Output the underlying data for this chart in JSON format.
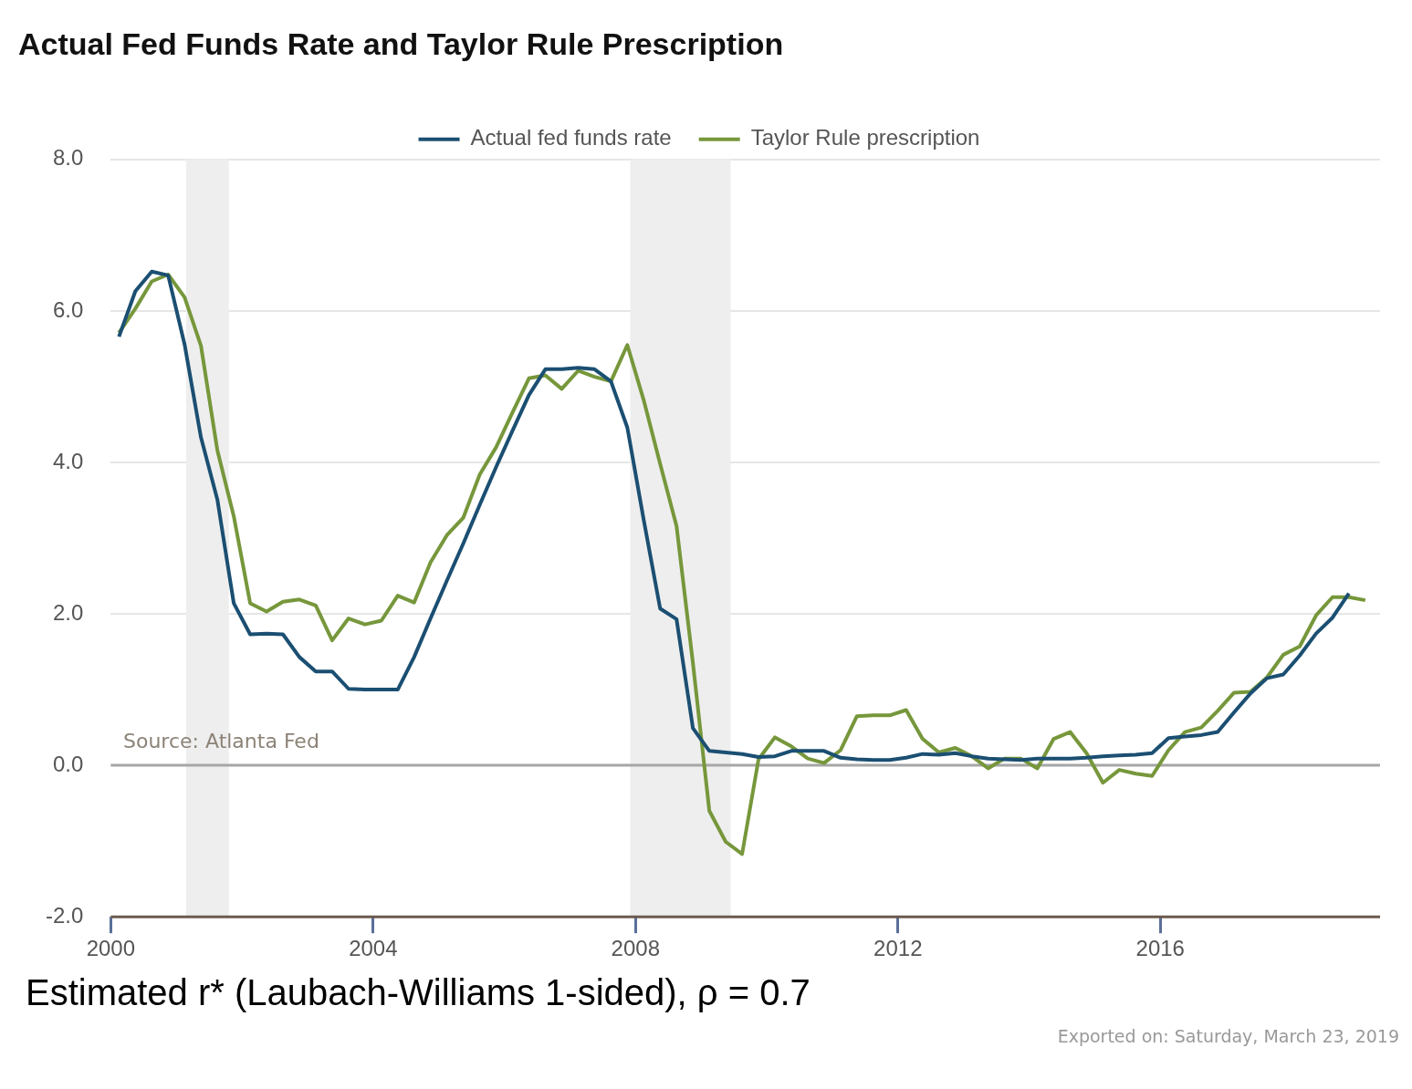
{
  "chart_data": {
    "type": "line",
    "title": "Actual Fed Funds Rate and Taylor Rule Prescription",
    "annotations": [
      "Source: Atlanta Fed",
      "Estimated r* (Laubach-Williams 1-sided), ρ = 0.7",
      "Exported on: Saturday, March 23, 2019"
    ],
    "xlim": [
      2000,
      2019.35
    ],
    "xticks": [
      2000,
      2004,
      2008,
      2012,
      2016
    ],
    "ylim": [
      -2,
      8
    ],
    "yticks": [
      {
        "value": -2,
        "label": "-2.0"
      },
      {
        "value": 0,
        "label": "0.0"
      },
      {
        "value": 2,
        "label": "2.0"
      },
      {
        "value": 4,
        "label": "4.0"
      },
      {
        "value": 6,
        "label": "6.0"
      },
      {
        "value": 8,
        "label": "8.0"
      }
    ],
    "grid": "y",
    "legend": "top",
    "marker": "none",
    "line_style": "solid",
    "bands": [
      {
        "axis": "x",
        "from": 2001.15,
        "to": 2001.8,
        "color": "#eeeeee"
      },
      {
        "axis": "x",
        "from": 2007.92,
        "to": 2009.45,
        "color": "#eeeeee"
      }
    ],
    "ref_lines": [
      {
        "axis": "y",
        "value": 0,
        "color": "#a6a6a6"
      }
    ],
    "series": [
      {
        "name": "Actual fed funds rate",
        "color": "#1b4f72",
        "x": [
          2000.125,
          2000.375,
          2000.625,
          2000.875,
          2001.125,
          2001.375,
          2001.625,
          2001.875,
          2002.125,
          2002.375,
          2002.625,
          2002.875,
          2003.125,
          2003.375,
          2003.625,
          2003.875,
          2004.125,
          2004.375,
          2004.625,
          2004.875,
          2005.125,
          2005.375,
          2005.625,
          2005.875,
          2006.125,
          2006.375,
          2006.625,
          2006.875,
          2007.125,
          2007.375,
          2007.625,
          2007.875,
          2008.125,
          2008.375,
          2008.625,
          2008.875,
          2009.125,
          2009.375,
          2009.625,
          2009.875,
          2010.125,
          2010.375,
          2010.625,
          2010.875,
          2011.125,
          2011.375,
          2011.625,
          2011.875,
          2012.125,
          2012.375,
          2012.625,
          2012.875,
          2013.125,
          2013.375,
          2013.625,
          2013.875,
          2014.125,
          2014.375,
          2014.625,
          2014.875,
          2015.125,
          2015.375,
          2015.625,
          2015.875,
          2016.125,
          2016.375,
          2016.625,
          2016.875,
          2017.125,
          2017.375,
          2017.625,
          2017.875,
          2018.125,
          2018.375,
          2018.625,
          2018.875
        ],
        "values": [
          5.66,
          6.26,
          6.52,
          6.47,
          5.56,
          4.33,
          3.51,
          2.14,
          1.73,
          1.74,
          1.73,
          1.43,
          1.24,
          1.24,
          1.01,
          1.0,
          1.0,
          1.0,
          1.43,
          1.94,
          2.44,
          2.93,
          3.44,
          3.94,
          4.42,
          4.89,
          5.23,
          5.23,
          5.25,
          5.23,
          5.07,
          4.46,
          3.24,
          2.07,
          1.93,
          0.49,
          0.19,
          0.17,
          0.15,
          0.11,
          0.12,
          0.19,
          0.19,
          0.19,
          0.1,
          0.08,
          0.07,
          0.07,
          0.1,
          0.15,
          0.14,
          0.16,
          0.12,
          0.09,
          0.08,
          0.07,
          0.09,
          0.09,
          0.09,
          0.1,
          0.12,
          0.13,
          0.14,
          0.16,
          0.36,
          0.38,
          0.4,
          0.44,
          0.7,
          0.95,
          1.15,
          1.2,
          1.45,
          1.74,
          1.95,
          2.27
        ]
      },
      {
        "name": "Taylor Rule prescription",
        "color": "#76973b",
        "x": [
          2000.125,
          2000.375,
          2000.625,
          2000.875,
          2001.125,
          2001.375,
          2001.625,
          2001.875,
          2002.125,
          2002.375,
          2002.625,
          2002.875,
          2003.125,
          2003.375,
          2003.625,
          2003.875,
          2004.125,
          2004.375,
          2004.625,
          2004.875,
          2005.125,
          2005.375,
          2005.625,
          2005.875,
          2006.125,
          2006.375,
          2006.625,
          2006.875,
          2007.125,
          2007.375,
          2007.625,
          2007.875,
          2008.125,
          2008.375,
          2008.625,
          2008.875,
          2009.125,
          2009.375,
          2009.625,
          2009.875,
          2010.125,
          2010.375,
          2010.625,
          2010.875,
          2011.125,
          2011.375,
          2011.625,
          2011.875,
          2012.125,
          2012.375,
          2012.625,
          2012.875,
          2013.125,
          2013.375,
          2013.625,
          2013.875,
          2014.125,
          2014.375,
          2014.625,
          2014.875,
          2015.125,
          2015.375,
          2015.625,
          2015.875,
          2016.125,
          2016.375,
          2016.625,
          2016.875,
          2017.125,
          2017.375,
          2017.625,
          2017.875,
          2018.125,
          2018.375,
          2018.625,
          2018.875,
          2019.125
        ],
        "values": [
          5.71,
          6.03,
          6.39,
          6.48,
          6.18,
          5.54,
          4.16,
          3.29,
          2.14,
          2.03,
          2.16,
          2.19,
          2.11,
          1.65,
          1.94,
          1.86,
          1.91,
          2.24,
          2.15,
          2.68,
          3.04,
          3.27,
          3.84,
          4.2,
          4.66,
          5.11,
          5.15,
          4.97,
          5.21,
          5.13,
          5.07,
          5.55,
          4.82,
          3.98,
          3.16,
          1.35,
          -0.6,
          -1.01,
          -1.17,
          0.08,
          0.37,
          0.25,
          0.09,
          0.03,
          0.2,
          0.65,
          0.66,
          0.66,
          0.73,
          0.35,
          0.17,
          0.23,
          0.12,
          -0.04,
          0.09,
          0.09,
          -0.04,
          0.35,
          0.44,
          0.16,
          -0.23,
          -0.06,
          -0.11,
          -0.14,
          0.2,
          0.44,
          0.5,
          0.72,
          0.96,
          0.97,
          1.16,
          1.46,
          1.57,
          1.98,
          2.22,
          2.22,
          2.18
        ]
      }
    ]
  }
}
